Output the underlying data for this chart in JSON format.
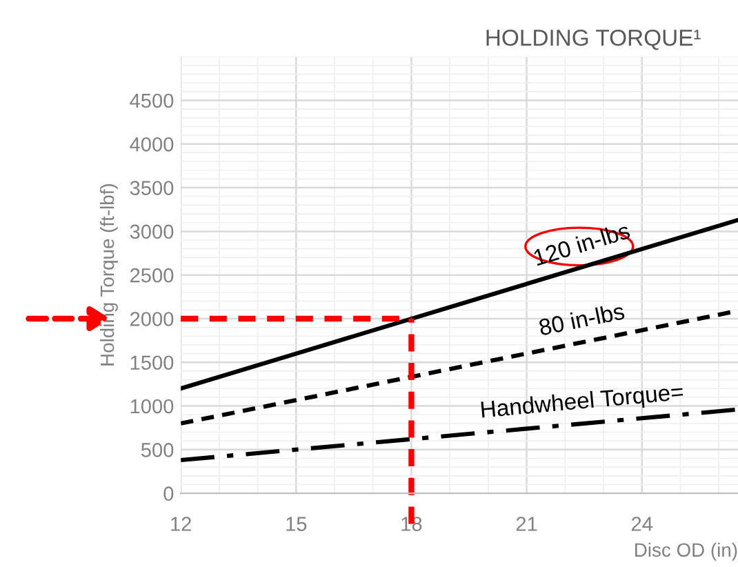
{
  "chart_data": {
    "type": "line",
    "title": "HOLDING TORQUE¹",
    "xlabel": "Disc OD (in)",
    "ylabel": "Holding Torque (ft-lbf)",
    "x": [
      12,
      26.5
    ],
    "series": [
      {
        "name": "120 in-lbs",
        "color": "#000000",
        "values": [
          1200,
          3130
        ],
        "line_style": "solid"
      },
      {
        "name": "80 in-lbs",
        "color": "#000000",
        "values": [
          800,
          2090
        ],
        "line_style": "dashed"
      },
      {
        "name": "Handwheel Torque=",
        "color": "#000000",
        "values": [
          380,
          960
        ],
        "line_style": "dashdot"
      }
    ],
    "xlim": [
      12,
      26.5
    ],
    "xticks": [
      12,
      15,
      18,
      21,
      24
    ],
    "ylim": [
      0,
      5000
    ],
    "yticks": [
      0,
      500,
      1000,
      1500,
      2000,
      2500,
      3000,
      3500,
      4000,
      4500
    ],
    "ref_lines": [
      {
        "axis": "y",
        "value": 2000,
        "color": "#ff0000",
        "line_style": "dashed"
      },
      {
        "axis": "x",
        "value": 18,
        "color": "#ff0000",
        "line_style": "dashed"
      }
    ],
    "grid": true,
    "legend": false,
    "marker": "none"
  }
}
